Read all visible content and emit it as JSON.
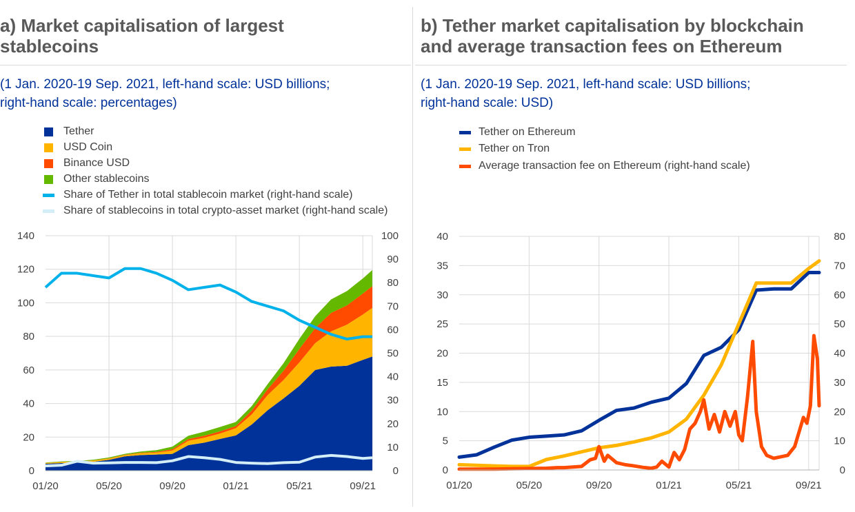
{
  "panels": {
    "a": {
      "title": "a) Market capitalisation of largest\nstablecoins",
      "subtitle": "(1 Jan. 2020-19 Sep. 2021, left-hand scale: USD billions;\nright-hand scale: percentages)"
    },
    "b": {
      "title": "b) Tether market capitalisation by blockchain\nand average transaction fees on Ethereum",
      "subtitle": "(1 Jan. 2020-19 Sep. 2021, left-hand scale: USD billions;\nright-hand scale: USD)"
    }
  },
  "colors": {
    "tether": "#003299",
    "usdc": "#FFB400",
    "binance": "#FF4B00",
    "other": "#65B800",
    "share_tether": "#00B1EA",
    "share_stable": "#D4EEF7",
    "fee": "#FF4B00",
    "grid": "#d9d9d9",
    "axis": "#b0b0b0"
  },
  "chart_data": [
    {
      "type": "area",
      "title": "a) Market capitalisation of largest stablecoins",
      "x_ticks": [
        "01/20",
        "05/20",
        "09/20",
        "01/21",
        "05/21",
        "09/21"
      ],
      "x_tick_months": [
        0,
        4,
        8,
        12,
        16,
        20
      ],
      "x_range_months": [
        0,
        20.6
      ],
      "ylim_left": [
        0,
        140
      ],
      "yticks_left": [
        0,
        20,
        40,
        60,
        80,
        100,
        120,
        140
      ],
      "ylim_right": [
        0,
        100
      ],
      "yticks_right": [
        0,
        10,
        20,
        30,
        40,
        50,
        60,
        70,
        80,
        90,
        100
      ],
      "ylabel_left": "",
      "ylabel_right": "",
      "x_months": [
        0,
        1,
        2,
        3,
        4,
        5,
        6,
        7,
        8,
        9,
        10,
        11,
        12,
        13,
        14,
        15,
        16,
        17,
        18,
        19,
        20,
        20.6
      ],
      "series": [
        {
          "name": "Tether",
          "kind": "stack",
          "axis": "left",
          "color_key": "tether",
          "values": [
            4.1,
            4.5,
            4.7,
            5.3,
            6.4,
            8.5,
            9.3,
            9.6,
            10.0,
            15.2,
            16.7,
            18.9,
            21.0,
            27.5,
            36.0,
            43.0,
            50.5,
            60.0,
            62.0,
            62.5,
            66.0,
            68.0
          ]
        },
        {
          "name": "USD Coin",
          "kind": "stack",
          "axis": "left",
          "color_key": "usdc",
          "values": [
            0.5,
            0.6,
            0.7,
            0.7,
            0.8,
            0.8,
            1.1,
            1.2,
            2.0,
            2.6,
            2.9,
            3.2,
            4.3,
            6.0,
            9.0,
            11.0,
            14.0,
            16.0,
            21.0,
            24.5,
            27.0,
            29.0
          ]
        },
        {
          "name": "Binance USD",
          "kind": "stack",
          "axis": "left",
          "color_key": "binance",
          "values": [
            0.0,
            0.1,
            0.1,
            0.1,
            0.15,
            0.2,
            0.3,
            0.4,
            0.8,
            1.0,
            1.2,
            1.3,
            1.3,
            2.3,
            3.5,
            5.5,
            8.0,
            9.0,
            11.0,
            11.5,
            12.5,
            13.0
          ]
        },
        {
          "name": "Other stablecoins",
          "kind": "stack",
          "axis": "left",
          "color_key": "other",
          "values": [
            0.2,
            0.3,
            0.3,
            0.4,
            0.5,
            0.5,
            0.7,
            1.0,
            1.5,
            2.0,
            2.4,
            2.6,
            2.4,
            2.7,
            3.0,
            4.5,
            6.0,
            7.0,
            8.0,
            8.5,
            9.0,
            9.5
          ]
        },
        {
          "name": "Share of Tether in total stablecoin market (right-hand scale)",
          "kind": "line",
          "axis": "right",
          "color_key": "share_tether",
          "values": [
            78,
            84,
            84,
            83,
            82,
            86,
            86,
            84,
            81,
            77,
            78,
            79,
            76,
            72,
            70,
            68,
            64,
            61,
            58,
            56,
            57,
            57
          ]
        },
        {
          "name": "Share of stablecoins in total crypto-asset market (right-hand scale)",
          "kind": "line",
          "axis": "right",
          "color_key": "share_stable",
          "values": [
            2.0,
            2.3,
            4.0,
            3.2,
            3.3,
            3.5,
            3.5,
            3.4,
            4.2,
            6.0,
            5.5,
            4.8,
            3.5,
            3.2,
            3.0,
            3.4,
            3.6,
            5.8,
            6.5,
            6.0,
            5.2,
            5.5
          ]
        }
      ]
    },
    {
      "type": "line",
      "title": "b) Tether market capitalisation by blockchain and average transaction fees on Ethereum",
      "x_ticks": [
        "01/20",
        "05/20",
        "09/20",
        "01/21",
        "05/21",
        "09/21"
      ],
      "x_tick_months": [
        0,
        4,
        8,
        12,
        16,
        20
      ],
      "x_range_months": [
        0,
        20.6
      ],
      "ylim_left": [
        0,
        40
      ],
      "yticks_left": [
        0,
        5,
        10,
        15,
        20,
        25,
        30,
        35,
        40
      ],
      "ylim_right": [
        0,
        80
      ],
      "yticks_right": [
        0,
        10,
        20,
        30,
        40,
        50,
        60,
        70,
        80
      ],
      "series": [
        {
          "name": "Tether on Ethereum",
          "axis": "left",
          "color_key": "tether",
          "x": [
            0,
            1,
            2,
            3,
            4,
            5,
            6,
            7,
            8,
            9,
            10,
            11,
            12,
            13,
            14,
            15,
            16,
            17,
            18,
            19,
            20,
            20.6
          ],
          "y": [
            2.2,
            2.6,
            3.9,
            5.1,
            5.6,
            5.8,
            6.0,
            6.7,
            8.5,
            10.2,
            10.6,
            11.6,
            12.3,
            14.8,
            19.6,
            21.0,
            24.0,
            30.8,
            31.0,
            31.0,
            33.8,
            33.8
          ]
        },
        {
          "name": "Tether on Tron",
          "axis": "left",
          "color_key": "usdc",
          "x": [
            0,
            1,
            2,
            3,
            4,
            5,
            6,
            7,
            8,
            9,
            10,
            11,
            12,
            13,
            14,
            15,
            16,
            17,
            18,
            19,
            20,
            20.6
          ],
          "y": [
            0.9,
            0.8,
            0.7,
            0.6,
            0.6,
            1.8,
            2.4,
            3.1,
            3.8,
            4.2,
            4.8,
            5.5,
            6.5,
            8.7,
            12.8,
            18.0,
            25.0,
            32.0,
            32.0,
            32.0,
            34.5,
            35.8
          ]
        },
        {
          "name": "Average transaction fee on Ethereum (right-hand scale)",
          "axis": "right",
          "color_key": "fee",
          "x": [
            0,
            1,
            2,
            3,
            4,
            5,
            5.6,
            6,
            7,
            7.5,
            7.8,
            8,
            8.3,
            8.5,
            9,
            9.5,
            10,
            10.5,
            11,
            11.3,
            11.6,
            12,
            12.3,
            12.6,
            12.9,
            13.2,
            13.5,
            13.8,
            14,
            14.3,
            14.6,
            14.9,
            15.2,
            15.5,
            15.8,
            16,
            16.2,
            16.5,
            16.8,
            17,
            17.3,
            17.6,
            18,
            18.4,
            18.8,
            19.2,
            19.5,
            19.7,
            19.9,
            20.1,
            20.3,
            20.5,
            20.6
          ],
          "y": [
            0.3,
            0.3,
            0.3,
            0.4,
            0.5,
            0.6,
            0.8,
            0.8,
            1.2,
            3.5,
            4.0,
            8.0,
            3.0,
            5.0,
            2.5,
            1.8,
            1.4,
            0.9,
            0.6,
            1.0,
            3.0,
            1.0,
            6.0,
            3.5,
            7.0,
            14.0,
            16.0,
            20.0,
            24.0,
            14.0,
            19.0,
            13.0,
            20.0,
            15.0,
            20.0,
            12.0,
            10.0,
            25.0,
            44.0,
            20.0,
            8.0,
            5.0,
            4.0,
            4.5,
            5.0,
            8.0,
            14.0,
            18.0,
            16.0,
            22.0,
            46.0,
            38.0,
            22.0
          ]
        }
      ]
    }
  ]
}
